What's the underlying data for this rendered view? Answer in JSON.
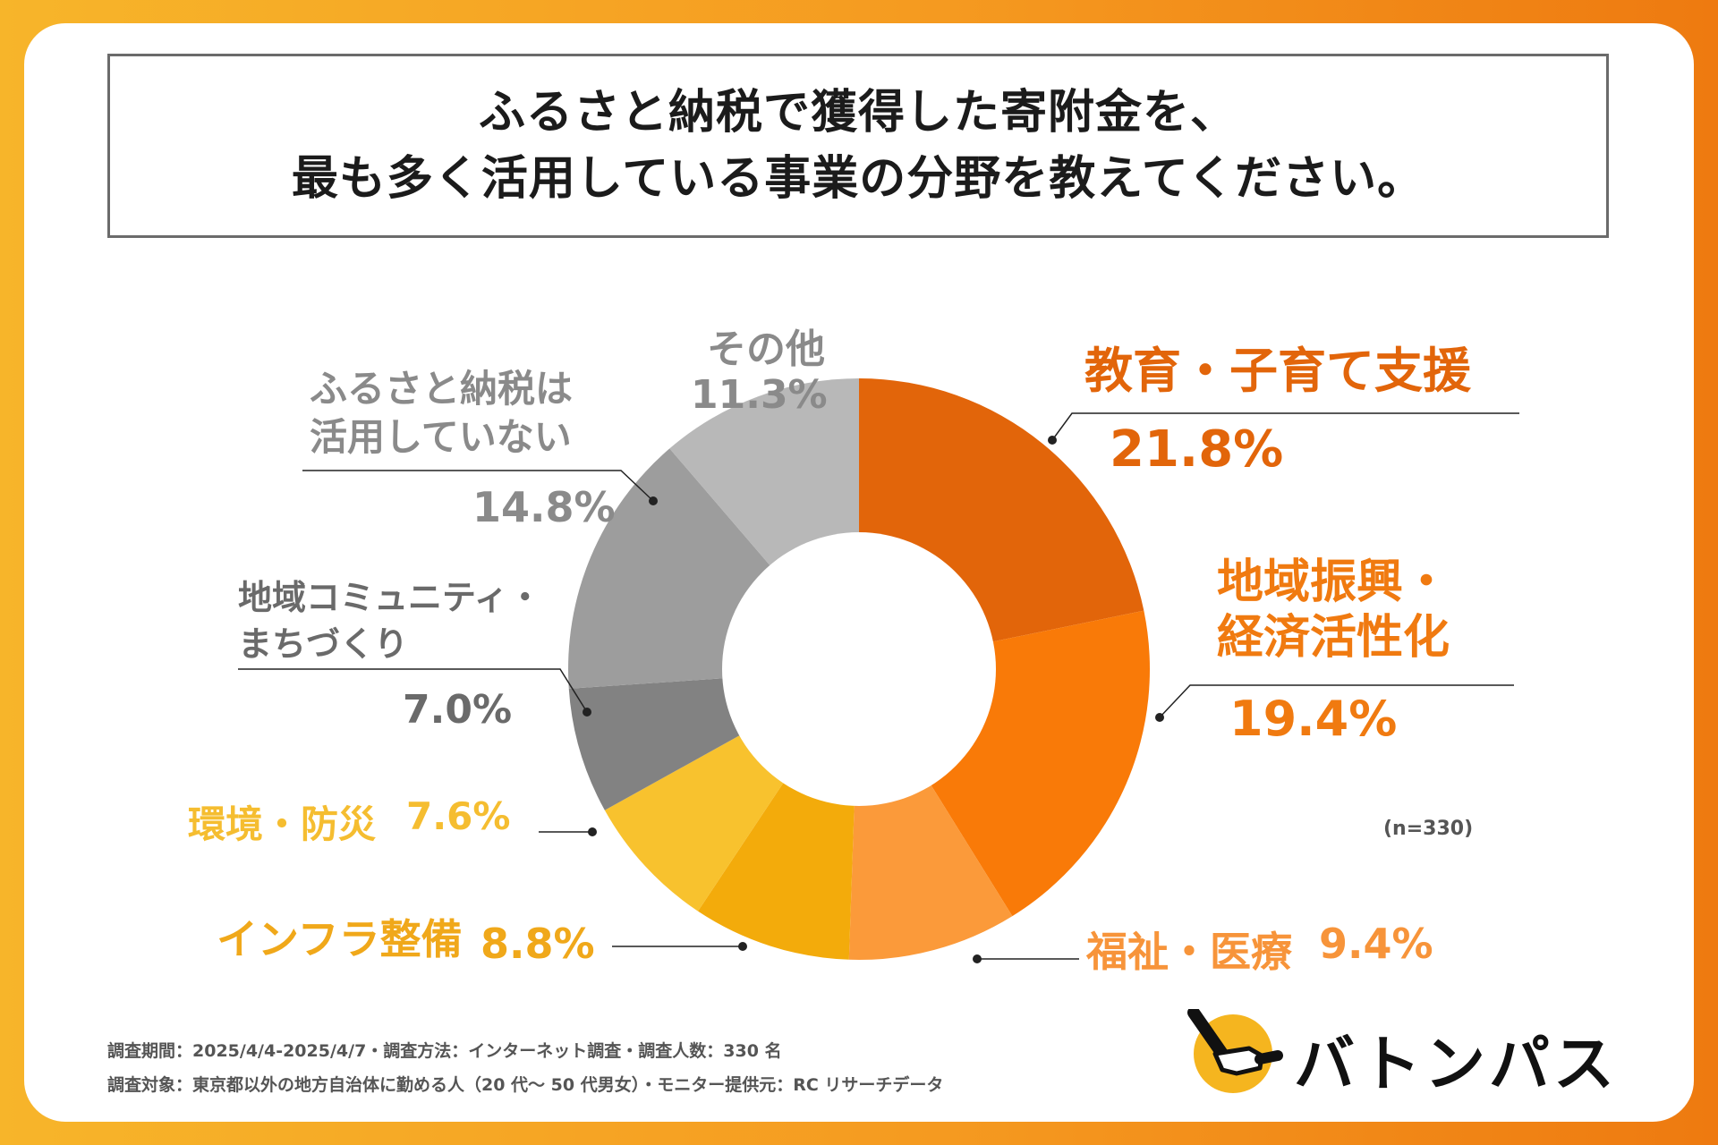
{
  "title": {
    "line1": "ふるさと納税で獲得した寄附金を、",
    "line2": "最も多く活用している事業の分野を教えてください。"
  },
  "chart_data": {
    "type": "pie",
    "donut": true,
    "sample_size": "(n=330)",
    "slices": [
      {
        "label": "教育・子育て支援",
        "value": 21.8,
        "value_text": "21.8%",
        "color": "#e2650a"
      },
      {
        "label": "地域振興・経済活性化",
        "value": 19.4,
        "value_text": "19.4%",
        "color": "#f97a08"
      },
      {
        "label": "福祉・医療",
        "value": 9.4,
        "value_text": "9.4%",
        "color": "#fb9a3a"
      },
      {
        "label": "インフラ整備",
        "value": 8.8,
        "value_text": "8.8%",
        "color": "#f3ab0b"
      },
      {
        "label": "環境・防災",
        "value": 7.6,
        "value_text": "7.6%",
        "color": "#f8c22e"
      },
      {
        "label": "地域コミュニティ・まちづくり",
        "value": 7.0,
        "value_text": "7.0%",
        "color": "#828282"
      },
      {
        "label": "ふるさと納税は活用していない",
        "value": 14.8,
        "value_text": "14.8%",
        "color": "#9d9d9d"
      },
      {
        "label": "その他",
        "value": 11.3,
        "value_text": "11.3%",
        "color": "#b8b8b8"
      }
    ]
  },
  "labels": {
    "s0": {
      "name": "教育・子育て支援",
      "value": "21.8%"
    },
    "s1": {
      "name1": "地域振興・",
      "name2": "経済活性化",
      "value": "19.4%"
    },
    "s2": {
      "name": "福祉・医療",
      "value": "9.4%"
    },
    "s3": {
      "name": "インフラ整備",
      "value": "8.8%"
    },
    "s4": {
      "name": "環境・防災",
      "value": "7.6%"
    },
    "s5": {
      "name1": "地域コミュニティ・",
      "name2": "まちづくり",
      "value": "7.0%"
    },
    "s6": {
      "name1": "ふるさと納税は",
      "name2": "活用していない",
      "value": "14.8%"
    },
    "s7": {
      "name": "その他",
      "value": "11.3%"
    }
  },
  "colors": {
    "orange_dark": "#e2650a",
    "orange": "#f07a10",
    "orange_light": "#f7943a",
    "yellow": "#f0a81a",
    "yellow_light": "#f5bd30",
    "gray_text": "#8a8a8a",
    "dark_gray_text": "#5e5e5e"
  },
  "footer": {
    "line1": "調査期間：2025/4/4-2025/4/7・調査方法：インターネット調査・調査人数：330 名",
    "line2": "調査対象：東京都以外の地方自治体に勤める人（20 代～ 50 代男女）・モニター提供元：RC リサーチデータ"
  },
  "logo": {
    "text": "バトンパス",
    "icon": "baton-hand-logo-icon"
  }
}
